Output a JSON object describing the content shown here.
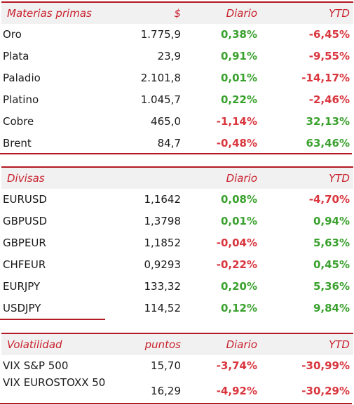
{
  "commodities": {
    "header": {
      "name": "Materias primas",
      "unit": "$",
      "daily": "Diario",
      "ytd": "YTD"
    },
    "rows": [
      {
        "name": "Oro",
        "value": "1.775,9",
        "daily": "0,38%",
        "ytd": "-6,45%"
      },
      {
        "name": "Plata",
        "value": "23,9",
        "daily": "0,91%",
        "ytd": "-9,55%"
      },
      {
        "name": "Paladio",
        "value": "2.101,8",
        "daily": "0,01%",
        "ytd": "-14,17%"
      },
      {
        "name": "Platino",
        "value": "1.045,7",
        "daily": "0,22%",
        "ytd": "-2,46%"
      },
      {
        "name": "Cobre",
        "value": "465,0",
        "daily": "-1,14%",
        "ytd": "32,13%"
      },
      {
        "name": "Brent",
        "value": "84,7",
        "daily": "-0,48%",
        "ytd": "63,46%"
      }
    ]
  },
  "currencies": {
    "header": {
      "name": "Divisas",
      "unit": "",
      "daily": "Diario",
      "ytd": "YTD"
    },
    "rows": [
      {
        "name": "EURUSD",
        "value": "1,1642",
        "daily": "0,08%",
        "ytd": "-4,70%"
      },
      {
        "name": "GBPUSD",
        "value": "1,3798",
        "daily": "0,01%",
        "ytd": "0,94%"
      },
      {
        "name": "GBPEUR",
        "value": "1,1852",
        "daily": "-0,04%",
        "ytd": "5,63%"
      },
      {
        "name": "CHFEUR",
        "value": "0,9293",
        "daily": "-0,22%",
        "ytd": "0,45%"
      },
      {
        "name": "EURJPY",
        "value": "133,32",
        "daily": "0,20%",
        "ytd": "5,36%"
      },
      {
        "name": "USDJPY",
        "value": "114,52",
        "daily": "0,12%",
        "ytd": "9,84%"
      }
    ]
  },
  "volatility": {
    "header": {
      "name": "Volatilidad",
      "unit": "puntos",
      "daily": "Diario",
      "ytd": "YTD"
    },
    "rows": [
      {
        "name": "VIX S&P 500",
        "value": "15,70",
        "daily": "-3,74%",
        "ytd": "-30,99%"
      },
      {
        "name": "VIX EUROSTOXX 50",
        "value": "16,29",
        "daily": "-4,92%",
        "ytd": "-30,29%"
      }
    ]
  },
  "colors": {
    "positive": "#3aa12e",
    "negative": "#d9363e",
    "accent": "#c8202c",
    "rule": "#b31a24"
  }
}
